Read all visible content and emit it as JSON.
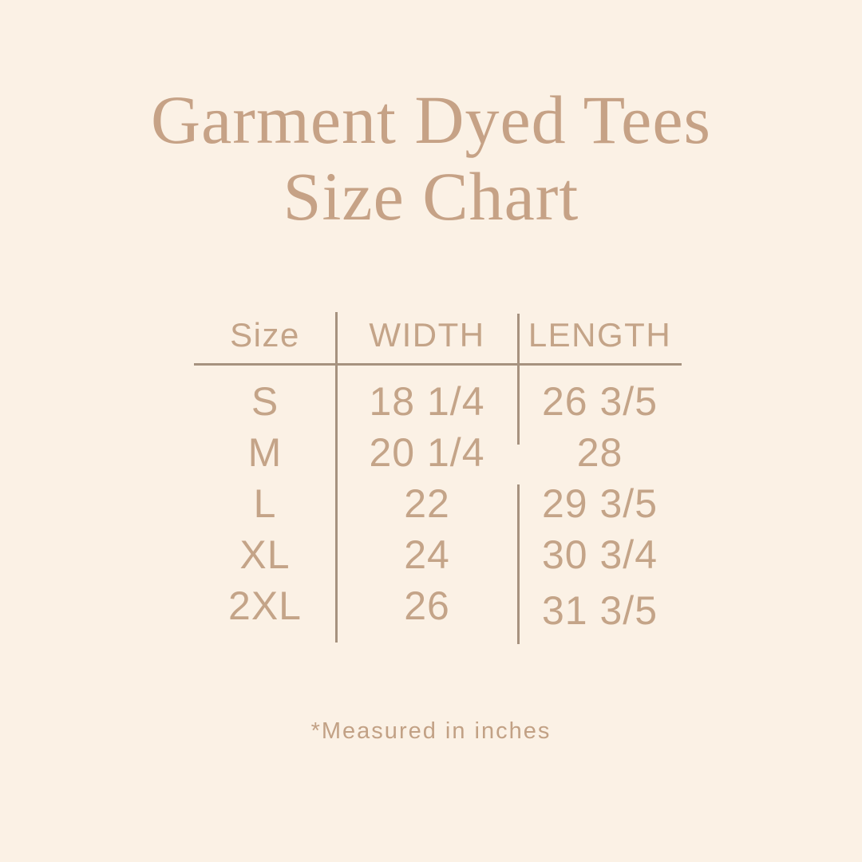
{
  "page": {
    "background_color": "#fbf1e5",
    "accent_text_color": "#c4a488",
    "line_color": "#a6927f"
  },
  "title": {
    "line1": "Garment Dyed Tees",
    "line2": "Size Chart",
    "color": "#c6a286"
  },
  "chart_data": {
    "type": "table",
    "title": "Garment Dyed Tees Size Chart",
    "columns": [
      "Size",
      "WIDTH",
      "LENGTH"
    ],
    "rows": [
      [
        "S",
        "18 1/4",
        "26 3/5"
      ],
      [
        "M",
        "20 1/4",
        "28"
      ],
      [
        "L",
        "22",
        "29 3/5"
      ],
      [
        "XL",
        "24",
        "30 3/4"
      ],
      [
        "2XL",
        "26",
        "31 3/5"
      ]
    ],
    "units": "inches",
    "note": "*Measured in inches"
  },
  "footnote": {
    "text": "*Measured in inches"
  }
}
